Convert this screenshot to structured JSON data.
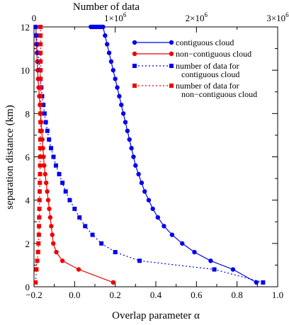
{
  "chart_data": {
    "type": "line",
    "xlabel": "Overlap parameter α",
    "ylabel": "separation distance (km)",
    "top_xlabel": "Number of data",
    "xlim": [
      -0.2,
      1.0
    ],
    "ylim": [
      0,
      12
    ],
    "top_xlim": [
      0,
      3000000
    ],
    "x_ticks": [
      "−0.2",
      "0.0",
      "0.2",
      "0.4",
      "0.6",
      "0.8",
      "1.0"
    ],
    "y_ticks": [
      "0",
      "2",
      "4",
      "6",
      "8",
      "10",
      "12"
    ],
    "top_ticks": [
      {
        "value": 0,
        "base": "0",
        "exp": ""
      },
      {
        "value": 1000000,
        "base": "1×10",
        "exp": "6"
      },
      {
        "value": 2000000,
        "base": "2×10",
        "exp": "6"
      },
      {
        "value": 3000000,
        "base": "3×10",
        "exp": "6"
      }
    ],
    "grid": false,
    "legend_position": "top-right",
    "colors": {
      "blue": "#0000ee",
      "red": "#ee0000"
    },
    "series": [
      {
        "name": "contiguous cloud",
        "axis": "bottom",
        "style": "solid-circle",
        "color": "#0000ee",
        "x": [
          0.895,
          0.78,
          0.67,
          0.59,
          0.53,
          0.48,
          0.44,
          0.41,
          0.385,
          0.365,
          0.345,
          0.33,
          0.315,
          0.3,
          0.29,
          0.28,
          0.27,
          0.26,
          0.25,
          0.24,
          0.23,
          0.22,
          0.21,
          0.2,
          0.19,
          0.18,
          0.17,
          0.16,
          0.15,
          0.14,
          0.13,
          0.12,
          0.11,
          0.1,
          0.09,
          0.08
        ],
        "y": [
          0.2,
          0.8,
          1.2,
          1.6,
          2.0,
          2.4,
          2.8,
          3.2,
          3.6,
          4.0,
          4.4,
          4.8,
          5.2,
          5.6,
          6.0,
          6.4,
          6.8,
          7.2,
          7.6,
          8.0,
          8.4,
          8.8,
          9.2,
          9.6,
          10.0,
          10.4,
          10.8,
          11.2,
          11.6,
          12.0,
          12.0,
          12.0,
          12.0,
          12.0,
          12.0,
          12.0
        ]
      },
      {
        "name": "non−contiguous cloud",
        "axis": "bottom",
        "style": "solid-circle",
        "color": "#ee0000",
        "x": [
          0.19,
          0.02,
          -0.06,
          -0.09,
          -0.105,
          -0.11,
          -0.115,
          -0.12,
          -0.125,
          -0.13,
          -0.135,
          -0.14,
          -0.145,
          -0.15,
          -0.153,
          -0.156,
          -0.159,
          -0.162,
          -0.165,
          -0.168,
          -0.171,
          -0.174,
          -0.177,
          -0.18,
          -0.182,
          -0.184,
          -0.186,
          -0.188,
          -0.19,
          -0.19
        ],
        "y": [
          0.2,
          0.8,
          1.2,
          1.6,
          2.0,
          2.4,
          2.8,
          3.2,
          3.6,
          4.0,
          4.4,
          4.8,
          5.2,
          5.6,
          6.0,
          6.4,
          6.8,
          7.2,
          7.6,
          8.0,
          8.4,
          8.8,
          9.2,
          9.6,
          10.0,
          10.4,
          10.8,
          11.2,
          11.6,
          12.0
        ]
      },
      {
        "name": "number of data for contiguous cloud",
        "axis": "top",
        "style": "dotted-square",
        "color": "#0000ee",
        "x": [
          2820000,
          2220000,
          1300000,
          1000000,
          830000,
          720000,
          630000,
          560000,
          500000,
          440000,
          390000,
          350000,
          310000,
          270000,
          240000,
          210000,
          185000,
          165000,
          145000,
          130000,
          115000,
          100000,
          90000,
          80000,
          70000,
          60000,
          50000,
          40000,
          30000,
          20000
        ],
        "y": [
          0.2,
          0.8,
          1.2,
          1.6,
          2.0,
          2.4,
          2.8,
          3.2,
          3.6,
          4.0,
          4.4,
          4.8,
          5.2,
          5.6,
          6.0,
          6.4,
          6.8,
          7.2,
          7.6,
          8.0,
          8.4,
          8.8,
          9.2,
          9.6,
          10.0,
          10.4,
          10.8,
          11.2,
          11.6,
          12.0
        ]
      },
      {
        "name": "number of data for non−contiguous cloud",
        "axis": "top",
        "style": "dotted-square",
        "color": "#ee0000",
        "x": [
          20000,
          30000,
          40000,
          50000,
          55000,
          60000,
          62000,
          64000,
          66000,
          68000,
          70000,
          72000,
          74000,
          75000,
          76000,
          77000,
          78000,
          79000,
          80000,
          80000,
          80000,
          80000,
          80000,
          80000,
          80000,
          80000,
          80000,
          80000,
          80000,
          80000
        ],
        "y": [
          0.2,
          0.8,
          1.2,
          1.6,
          2.0,
          2.4,
          2.8,
          3.2,
          3.6,
          4.0,
          4.4,
          4.8,
          5.2,
          5.6,
          6.0,
          6.4,
          6.8,
          7.2,
          7.6,
          8.0,
          8.4,
          8.8,
          9.2,
          9.6,
          10.0,
          10.4,
          10.8,
          11.2,
          11.6,
          12.0
        ]
      }
    ],
    "legend": [
      {
        "lines": [
          "contiguous cloud"
        ],
        "series": 0
      },
      {
        "lines": [
          "non−contiguous cloud"
        ],
        "series": 1
      },
      {
        "lines": [
          "number of data for",
          "contiguous cloud"
        ],
        "series": 2
      },
      {
        "lines": [
          "number of data for",
          "non−contiguous cloud"
        ],
        "series": 3
      }
    ]
  }
}
